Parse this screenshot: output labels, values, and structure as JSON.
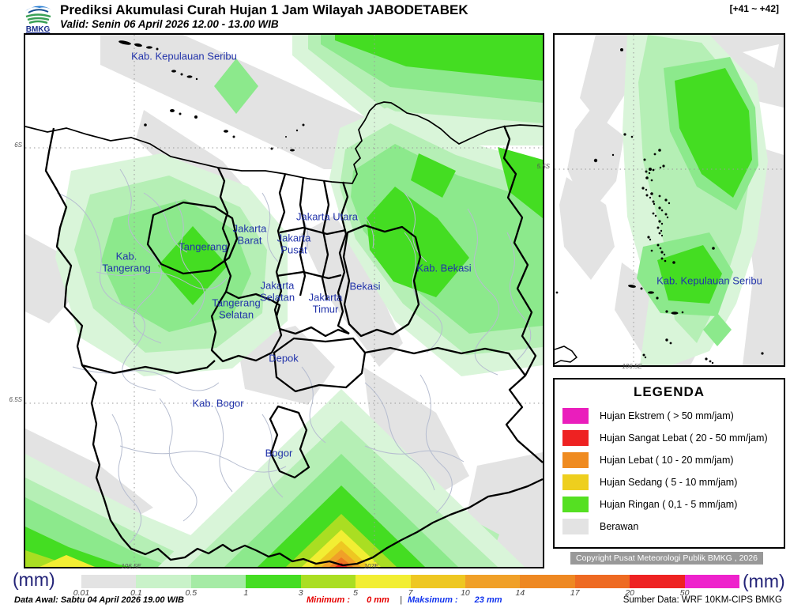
{
  "header": {
    "logo_text": "BMKG",
    "title": "Prediksi Akumulasi Curah Hujan 1 Jam Wilayah JABODETABEK",
    "subtitle": "Valid: Senin 06 April 2026 12.00 - 13.00 WIB",
    "range": "[+41 ~ +42]"
  },
  "map": {
    "labels": [
      {
        "text": "Kab. Kepulauan Seribu"
      },
      {
        "text": "Tangerang"
      },
      {
        "text": "Kab. Tangerang"
      },
      {
        "text": "Jakarta Barat"
      },
      {
        "text": "Jakarta Utara"
      },
      {
        "text": "Jakarta Pusat"
      },
      {
        "text": "Jakarta Selatan"
      },
      {
        "text": "Tangerang Selatan"
      },
      {
        "text": "Jakarta Timur"
      },
      {
        "text": "Bekasi"
      },
      {
        "text": "Kab. Bekasi"
      },
      {
        "text": "Depok"
      },
      {
        "text": "Kab. Bogor"
      },
      {
        "text": "Bogor"
      }
    ],
    "ticks": {
      "left_top": "6S",
      "left_bottom": "6.5S",
      "bottom_left": "106.5E",
      "bottom_right": "107E"
    }
  },
  "inset": {
    "label": "Kab. Kepulauan Seribu",
    "tick_left": "5.5S",
    "tick_bottom": "106.5E"
  },
  "legend": {
    "title": "LEGENDA",
    "items": [
      {
        "label": "Hujan Ekstrem ( > 50 mm/jam)",
        "color": "#ea1ebc"
      },
      {
        "label": "Hujan Sangat Lebat ( 20 - 50 mm/jam)",
        "color": "#ee2222"
      },
      {
        "label": "Hujan Lebat ( 10 - 20 mm/jam)",
        "color": "#ef8b20"
      },
      {
        "label": "Hujan Sedang ( 5 - 10 mm/jam)",
        "color": "#eecf1e"
      },
      {
        "label": "Hujan Ringan ( 0,1 - 5 mm/jam)",
        "color": "#55e022"
      },
      {
        "label": "Berawan",
        "color": "#e3e3e3"
      }
    ]
  },
  "copyright": "Copyright Pusat Meteorologi Publik BMKG , 2026",
  "colorbar": {
    "unit_left": "(mm)",
    "unit_right": "(mm)",
    "labels": [
      "0.01",
      "0.1",
      "0.5",
      "1",
      "3",
      "5",
      "7",
      "10",
      "14",
      "17",
      "20",
      "50"
    ],
    "colors": [
      "#e3e3e3",
      "#c9f2c9",
      "#a5eba5",
      "#44dd22",
      "#aade22",
      "#f2ee33",
      "#eec722",
      "#f0a028",
      "#ee8822",
      "#ee6a22",
      "#ee2222",
      "#ee22cc"
    ]
  },
  "footer": {
    "data_awal": "Data Awal: Sabtu 04 April 2026 19.00 WIB",
    "minimum_label": "Minimum :",
    "minimum_value": "0 mm",
    "separator": "|",
    "maximum_label": "Maksimum :",
    "maximum_value": "23 mm",
    "sumber": "Sumber Data: WRF 10KM-CIPS BMKG"
  }
}
